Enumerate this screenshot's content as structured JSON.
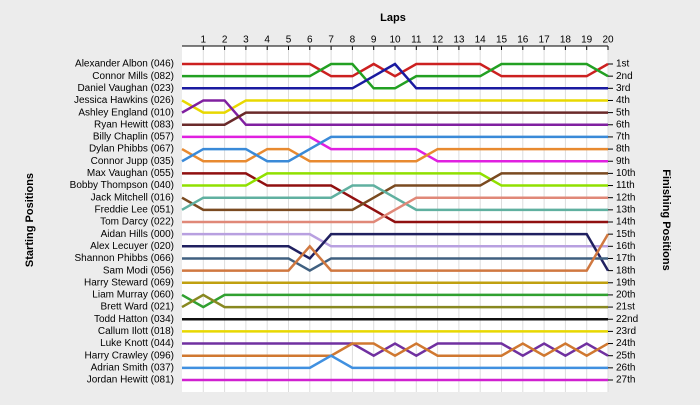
{
  "chart_data": {
    "type": "line",
    "title": "Laps",
    "y_label": "Starting Positions",
    "y2_label": "Finishing Positions",
    "x": [
      0,
      1,
      2,
      3,
      4,
      5,
      6,
      7,
      8,
      9,
      10,
      11,
      12,
      13,
      14,
      15,
      16,
      17,
      18,
      19,
      20
    ],
    "xlim": [
      0,
      20
    ],
    "xticks": [
      1,
      2,
      3,
      4,
      5,
      6,
      7,
      8,
      9,
      10,
      11,
      12,
      13,
      14,
      15,
      16,
      17,
      18,
      19,
      20
    ],
    "ylim": [
      1,
      27
    ],
    "y_inverted": true,
    "grid": true,
    "yticks": [
      {
        "value": 1,
        "label": "1st"
      },
      {
        "value": 2,
        "label": "2nd"
      },
      {
        "value": 3,
        "label": "3rd"
      },
      {
        "value": 4,
        "label": "4th"
      },
      {
        "value": 5,
        "label": "5th"
      },
      {
        "value": 6,
        "label": "6th"
      },
      {
        "value": 7,
        "label": "7th"
      },
      {
        "value": 8,
        "label": "8th"
      },
      {
        "value": 9,
        "label": "9th"
      },
      {
        "value": 10,
        "label": "10th"
      },
      {
        "value": 11,
        "label": "11th"
      },
      {
        "value": 12,
        "label": "12th"
      },
      {
        "value": 13,
        "label": "13th"
      },
      {
        "value": 14,
        "label": "14th"
      },
      {
        "value": 15,
        "label": "15th"
      },
      {
        "value": 16,
        "label": "16th"
      },
      {
        "value": 17,
        "label": "17th"
      },
      {
        "value": 18,
        "label": "18th"
      },
      {
        "value": 19,
        "label": "19th"
      },
      {
        "value": 20,
        "label": "20th"
      },
      {
        "value": 21,
        "label": "21st"
      },
      {
        "value": 22,
        "label": "22nd"
      },
      {
        "value": 23,
        "label": "23rd"
      },
      {
        "value": 24,
        "label": "24th"
      },
      {
        "value": 25,
        "label": "25th"
      },
      {
        "value": 26,
        "label": "26th"
      },
      {
        "value": 27,
        "label": "27th"
      }
    ],
    "series": [
      {
        "name": "Alexander Albon (046)",
        "color": "#cc2020",
        "values": [
          1,
          1,
          1,
          1,
          1,
          1,
          1,
          2,
          2,
          1,
          2,
          1,
          1,
          1,
          1,
          2,
          2,
          2,
          2,
          2,
          1
        ]
      },
      {
        "name": "Connor Mills (082)",
        "color": "#22a022",
        "values": [
          2,
          2,
          2,
          2,
          2,
          2,
          2,
          1,
          1,
          3,
          3,
          2,
          2,
          2,
          2,
          1,
          1,
          1,
          1,
          1,
          2
        ]
      },
      {
        "name": "Daniel Vaughan (023)",
        "color": "#1a1aa0",
        "values": [
          3,
          3,
          3,
          3,
          3,
          3,
          3,
          3,
          3,
          2,
          1,
          3,
          3,
          3,
          3,
          3,
          3,
          3,
          3,
          3,
          3
        ]
      },
      {
        "name": "Jessica Hawkins (026)",
        "color": "#e8d800",
        "values": [
          4,
          5,
          5,
          4,
          4,
          4,
          4,
          4,
          4,
          4,
          4,
          4,
          4,
          4,
          4,
          4,
          4,
          4,
          4,
          4,
          4
        ]
      },
      {
        "name": "Ashley England (010)",
        "color": "#8020a0",
        "values": [
          5,
          4,
          4,
          6,
          6,
          6,
          6,
          6,
          6,
          6,
          6,
          6,
          6,
          6,
          6,
          6,
          6,
          6,
          6,
          6,
          6
        ]
      },
      {
        "name": "Ryan Hewitt (083)",
        "color": "#6a2a2a",
        "values": [
          6,
          6,
          6,
          5,
          5,
          5,
          5,
          5,
          5,
          5,
          5,
          5,
          5,
          5,
          5,
          5,
          5,
          5,
          5,
          5,
          5
        ]
      },
      {
        "name": "Billy Chaplin (057)",
        "color": "#e020e0",
        "values": [
          7,
          7,
          7,
          7,
          7,
          7,
          7,
          8,
          8,
          8,
          8,
          8,
          9,
          9,
          9,
          9,
          9,
          9,
          9,
          9,
          9
        ]
      },
      {
        "name": "Dylan Phibbs (067)",
        "color": "#e88a30",
        "values": [
          8,
          9,
          9,
          9,
          8,
          8,
          9,
          9,
          9,
          9,
          9,
          9,
          8,
          8,
          8,
          8,
          8,
          8,
          8,
          8,
          8
        ]
      },
      {
        "name": "Connor Jupp (035)",
        "color": "#3a8ad8",
        "values": [
          9,
          8,
          8,
          8,
          9,
          9,
          8,
          7,
          7,
          7,
          7,
          7,
          7,
          7,
          7,
          7,
          7,
          7,
          7,
          7,
          7
        ]
      },
      {
        "name": "Max Vaughan (055)",
        "color": "#901010",
        "values": [
          10,
          10,
          10,
          10,
          11,
          11,
          11,
          11,
          12,
          13,
          14,
          14,
          14,
          14,
          14,
          14,
          14,
          14,
          14,
          14,
          14
        ]
      },
      {
        "name": "Bobby Thompson (040)",
        "color": "#90e000",
        "values": [
          11,
          11,
          11,
          11,
          10,
          10,
          10,
          10,
          10,
          10,
          10,
          10,
          10,
          10,
          10,
          11,
          11,
          11,
          11,
          11,
          11
        ]
      },
      {
        "name": "Jack Mitchell (016)",
        "color": "#7a4a20",
        "values": [
          12,
          13,
          13,
          13,
          13,
          13,
          13,
          13,
          13,
          12,
          11,
          11,
          11,
          11,
          11,
          10,
          10,
          10,
          10,
          10,
          10
        ]
      },
      {
        "name": "Freddie Lee (051)",
        "color": "#60b0a0",
        "values": [
          13,
          12,
          12,
          12,
          12,
          12,
          12,
          12,
          11,
          11,
          12,
          13,
          13,
          13,
          13,
          13,
          13,
          13,
          13,
          13,
          13
        ]
      },
      {
        "name": "Tom Darcy (022)",
        "color": "#e08878",
        "values": [
          14,
          14,
          14,
          14,
          14,
          14,
          14,
          14,
          14,
          14,
          13,
          12,
          12,
          12,
          12,
          12,
          12,
          12,
          12,
          12,
          12
        ]
      },
      {
        "name": "Aidan Hills (000)",
        "color": "#b8a0e0",
        "values": [
          15,
          15,
          15,
          15,
          15,
          15,
          15,
          16,
          16,
          16,
          16,
          16,
          16,
          16,
          16,
          16,
          16,
          16,
          16,
          16,
          16
        ]
      },
      {
        "name": "Alex Lecuyer (020)",
        "color": "#202060",
        "values": [
          16,
          16,
          16,
          16,
          16,
          16,
          17,
          15,
          15,
          15,
          15,
          15,
          15,
          15,
          15,
          15,
          15,
          15,
          15,
          15,
          18
        ]
      },
      {
        "name": "Shannon Phibbs (066)",
        "color": "#406080",
        "values": [
          17,
          17,
          17,
          17,
          17,
          17,
          18,
          17,
          17,
          17,
          17,
          17,
          17,
          17,
          17,
          17,
          17,
          17,
          17,
          17,
          17
        ]
      },
      {
        "name": "Sam Modi (056)",
        "color": "#d07840",
        "values": [
          18,
          18,
          18,
          18,
          18,
          18,
          16,
          18,
          18,
          18,
          18,
          18,
          18,
          18,
          18,
          18,
          18,
          18,
          18,
          18,
          15
        ]
      },
      {
        "name": "Harry Steward (069)",
        "color": "#c0a010",
        "values": [
          19,
          19,
          19,
          19,
          19,
          19,
          19,
          19,
          19,
          19,
          19,
          19,
          19,
          19,
          19,
          19,
          19,
          19,
          19,
          19,
          19
        ]
      },
      {
        "name": "Liam Murray (060)",
        "color": "#30a030",
        "values": [
          20,
          21,
          20,
          20,
          20,
          20,
          20,
          20,
          20,
          20,
          20,
          20,
          20,
          20,
          20,
          20,
          20,
          20,
          20,
          20,
          20
        ]
      },
      {
        "name": "Brett Ward (021)",
        "color": "#888820",
        "values": [
          21,
          20,
          21,
          21,
          21,
          21,
          21,
          21,
          21,
          21,
          21,
          21,
          21,
          21,
          21,
          21,
          21,
          21,
          21,
          21,
          21
        ]
      },
      {
        "name": "Todd Hatton (034)",
        "color": "#101010",
        "values": [
          22,
          22,
          22,
          22,
          22,
          22,
          22,
          22,
          22,
          22,
          22,
          22,
          22,
          22,
          22,
          22,
          22,
          22,
          22,
          22,
          22
        ]
      },
      {
        "name": "Callum Ilott (018)",
        "color": "#e8d800",
        "values": [
          23,
          23,
          23,
          23,
          23,
          23,
          23,
          23,
          23,
          23,
          23,
          23,
          23,
          23,
          23,
          23,
          23,
          23,
          23,
          23,
          23
        ]
      },
      {
        "name": "Luke Knott (044)",
        "color": "#7030a0",
        "values": [
          24,
          24,
          24,
          24,
          24,
          24,
          24,
          24,
          24,
          25,
          24,
          25,
          24,
          24,
          24,
          24,
          25,
          24,
          25,
          24,
          25
        ]
      },
      {
        "name": "Harry Crawley (096)",
        "color": "#d07830",
        "values": [
          25,
          25,
          25,
          25,
          25,
          25,
          25,
          25,
          24,
          24,
          25,
          24,
          25,
          25,
          25,
          25,
          24,
          25,
          24,
          25,
          24
        ]
      },
      {
        "name": "Adrian Smith (037)",
        "color": "#4090e0",
        "values": [
          26,
          26,
          26,
          26,
          26,
          26,
          26,
          25,
          26,
          26,
          26,
          26,
          26,
          26,
          26,
          26,
          26,
          26,
          26,
          26,
          26
        ]
      },
      {
        "name": "Jordan Hewitt (081)",
        "color": "#d020d0",
        "values": [
          27,
          27,
          27,
          27,
          27,
          27,
          27,
          27,
          27,
          27,
          27,
          27,
          27,
          27,
          27,
          27,
          27,
          27,
          27,
          27,
          27
        ]
      }
    ]
  }
}
